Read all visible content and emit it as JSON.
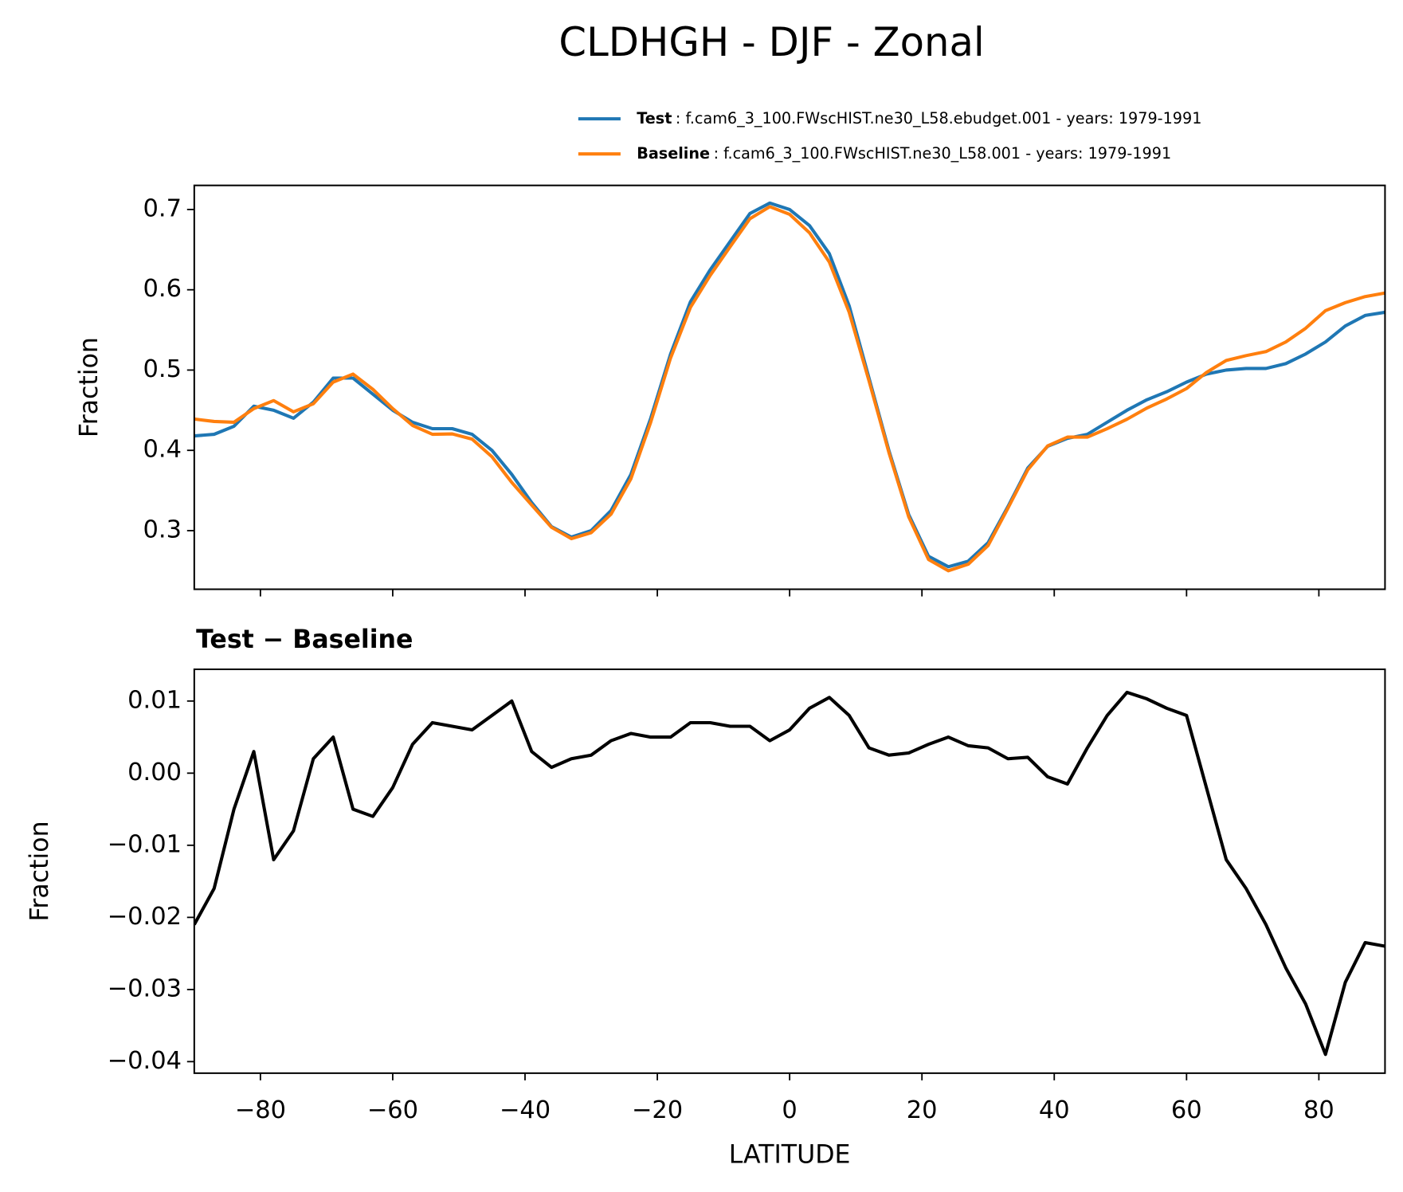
{
  "title": "CLDHGH - DJF - Zonal",
  "chart_data": [
    {
      "type": "line",
      "ylabel": "Fraction",
      "x": [
        -90,
        -87,
        -84,
        -81,
        -78,
        -75,
        -72,
        -69,
        -66,
        -63,
        -60,
        -57,
        -54,
        -51,
        -48,
        -45,
        -42,
        -39,
        -36,
        -33,
        -30,
        -27,
        -24,
        -21,
        -18,
        -15,
        -12,
        -9,
        -6,
        -3,
        0,
        3,
        6,
        9,
        12,
        15,
        18,
        21,
        24,
        27,
        30,
        33,
        36,
        39,
        42,
        45,
        48,
        51,
        54,
        57,
        60,
        63,
        66,
        69,
        72,
        75,
        78,
        81,
        84,
        87,
        90
      ],
      "xlim": [
        -90,
        90
      ],
      "xticks": [
        -80,
        -60,
        -40,
        -20,
        0,
        20,
        40,
        60,
        80
      ],
      "ylim": [
        0.227,
        0.73
      ],
      "yticks": [
        0.3,
        0.4,
        0.5,
        0.6,
        0.7
      ],
      "series": [
        {
          "name": "Test",
          "label": ": f.cam6_3_100.FWscHIST.ne30_L58.ebudget.001 - years: 1979-1991",
          "color": "#1f77b4",
          "values": [
            0.418,
            0.42,
            0.43,
            0.455,
            0.45,
            0.44,
            0.46,
            0.49,
            0.49,
            0.47,
            0.45,
            0.435,
            0.427,
            0.427,
            0.42,
            0.4,
            0.37,
            0.335,
            0.305,
            0.292,
            0.3,
            0.325,
            0.37,
            0.44,
            0.52,
            0.585,
            0.625,
            0.66,
            0.695,
            0.708,
            0.7,
            0.68,
            0.645,
            0.58,
            0.49,
            0.4,
            0.32,
            0.268,
            0.255,
            0.262,
            0.285,
            0.33,
            0.378,
            0.405,
            0.415,
            0.42,
            0.435,
            0.45,
            0.463,
            0.473,
            0.485,
            0.495,
            0.5,
            0.502,
            0.502,
            0.508,
            0.52,
            0.535,
            0.555,
            0.568,
            0.572
          ]
        },
        {
          "name": "Baseline",
          "label": ": f.cam6_3_100.FWscHIST.ne30_L58.001 - years: 1979-1991",
          "color": "#ff7f0e",
          "values": [
            0.439,
            0.436,
            0.435,
            0.452,
            0.462,
            0.448,
            0.458,
            0.485,
            0.495,
            0.476,
            0.452,
            0.431,
            0.42,
            0.4205,
            0.414,
            0.392,
            0.36,
            0.332,
            0.3042,
            0.29,
            0.2975,
            0.3205,
            0.3645,
            0.435,
            0.515,
            0.578,
            0.618,
            0.6535,
            0.6885,
            0.7035,
            0.694,
            0.671,
            0.6345,
            0.572,
            0.4865,
            0.3975,
            0.3172,
            0.264,
            0.25,
            0.2582,
            0.2815,
            0.328,
            0.3758,
            0.4055,
            0.4165,
            0.4165,
            0.427,
            0.4388,
            0.4527,
            0.464,
            0.477,
            0.497,
            0.512,
            0.518,
            0.523,
            0.535,
            0.552,
            0.574,
            0.584,
            0.5915,
            0.596
          ]
        }
      ]
    },
    {
      "type": "line",
      "title": "Test − Baseline",
      "xlabel": "LATITUDE",
      "ylabel": "Fraction",
      "x": [
        -90,
        -87,
        -84,
        -81,
        -78,
        -75,
        -72,
        -69,
        -66,
        -63,
        -60,
        -57,
        -54,
        -51,
        -48,
        -45,
        -42,
        -39,
        -36,
        -33,
        -30,
        -27,
        -24,
        -21,
        -18,
        -15,
        -12,
        -9,
        -6,
        -3,
        0,
        3,
        6,
        9,
        12,
        15,
        18,
        21,
        24,
        27,
        30,
        33,
        36,
        39,
        42,
        45,
        48,
        51,
        54,
        57,
        60,
        63,
        66,
        69,
        72,
        75,
        78,
        81,
        84,
        87,
        90
      ],
      "xlim": [
        -90,
        90
      ],
      "xticks": [
        {
          "value": -80,
          "label": "−80"
        },
        {
          "value": -60,
          "label": "−60"
        },
        {
          "value": -40,
          "label": "−40"
        },
        {
          "value": -20,
          "label": "−20"
        },
        0,
        20,
        40,
        60,
        80
      ],
      "ylim": [
        -0.0416,
        0.0144
      ],
      "yticks": [
        {
          "value": -0.04,
          "label": "−0.04"
        },
        {
          "value": -0.03,
          "label": "−0.03"
        },
        {
          "value": -0.02,
          "label": "−0.02"
        },
        {
          "value": -0.01,
          "label": "−0.01"
        },
        {
          "value": 0,
          "label": "0.00"
        },
        0.01
      ],
      "series": [
        {
          "color": "#000000",
          "values": [
            -0.021,
            -0.016,
            -0.005,
            0.003,
            -0.012,
            -0.008,
            0.002,
            0.005,
            -0.005,
            -0.006,
            -0.002,
            0.004,
            0.007,
            0.0065,
            0.006,
            0.008,
            0.01,
            0.003,
            0.0008,
            0.002,
            0.0025,
            0.0045,
            0.0055,
            0.005,
            0.005,
            0.007,
            0.007,
            0.0065,
            0.0065,
            0.0045,
            0.006,
            0.009,
            0.0105,
            0.008,
            0.0035,
            0.0025,
            0.0028,
            0.004,
            0.005,
            0.0038,
            0.0035,
            0.002,
            0.0022,
            -0.0005,
            -0.0015,
            0.0035,
            0.008,
            0.0112,
            0.0103,
            0.009,
            0.008,
            -0.002,
            -0.012,
            -0.016,
            -0.021,
            -0.027,
            -0.032,
            -0.039,
            -0.029,
            -0.0235,
            -0.024
          ]
        }
      ]
    }
  ]
}
